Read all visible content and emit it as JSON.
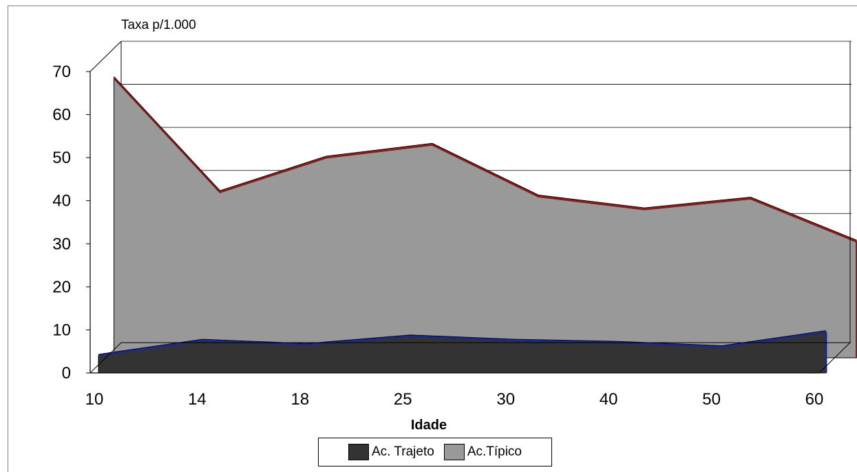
{
  "chart_data": {
    "type": "area",
    "title": "",
    "unit_label": "Taxa p/1.000",
    "xlabel": "Idade",
    "ylabel": "",
    "categories": [
      "10",
      "14",
      "18",
      "25",
      "30",
      "40",
      "50",
      "60"
    ],
    "yticks": [
      "0",
      "10",
      "20",
      "30",
      "40",
      "50",
      "60",
      "70"
    ],
    "ylim": [
      0,
      70
    ],
    "grid": true,
    "three_d": true,
    "legend_position": "bottom",
    "series": [
      {
        "name": "Ac. Trajeto",
        "values": [
          4,
          7.5,
          6.5,
          8.5,
          7.5,
          7,
          6,
          9.5
        ],
        "color": "#333333",
        "edge": "#1a2a8a"
      },
      {
        "name": "Ac.Típico",
        "values": [
          65,
          38.5,
          46.5,
          49.5,
          37.5,
          34.5,
          37,
          27
        ],
        "color": "#999999",
        "edge": "#8b1a1a"
      }
    ]
  }
}
